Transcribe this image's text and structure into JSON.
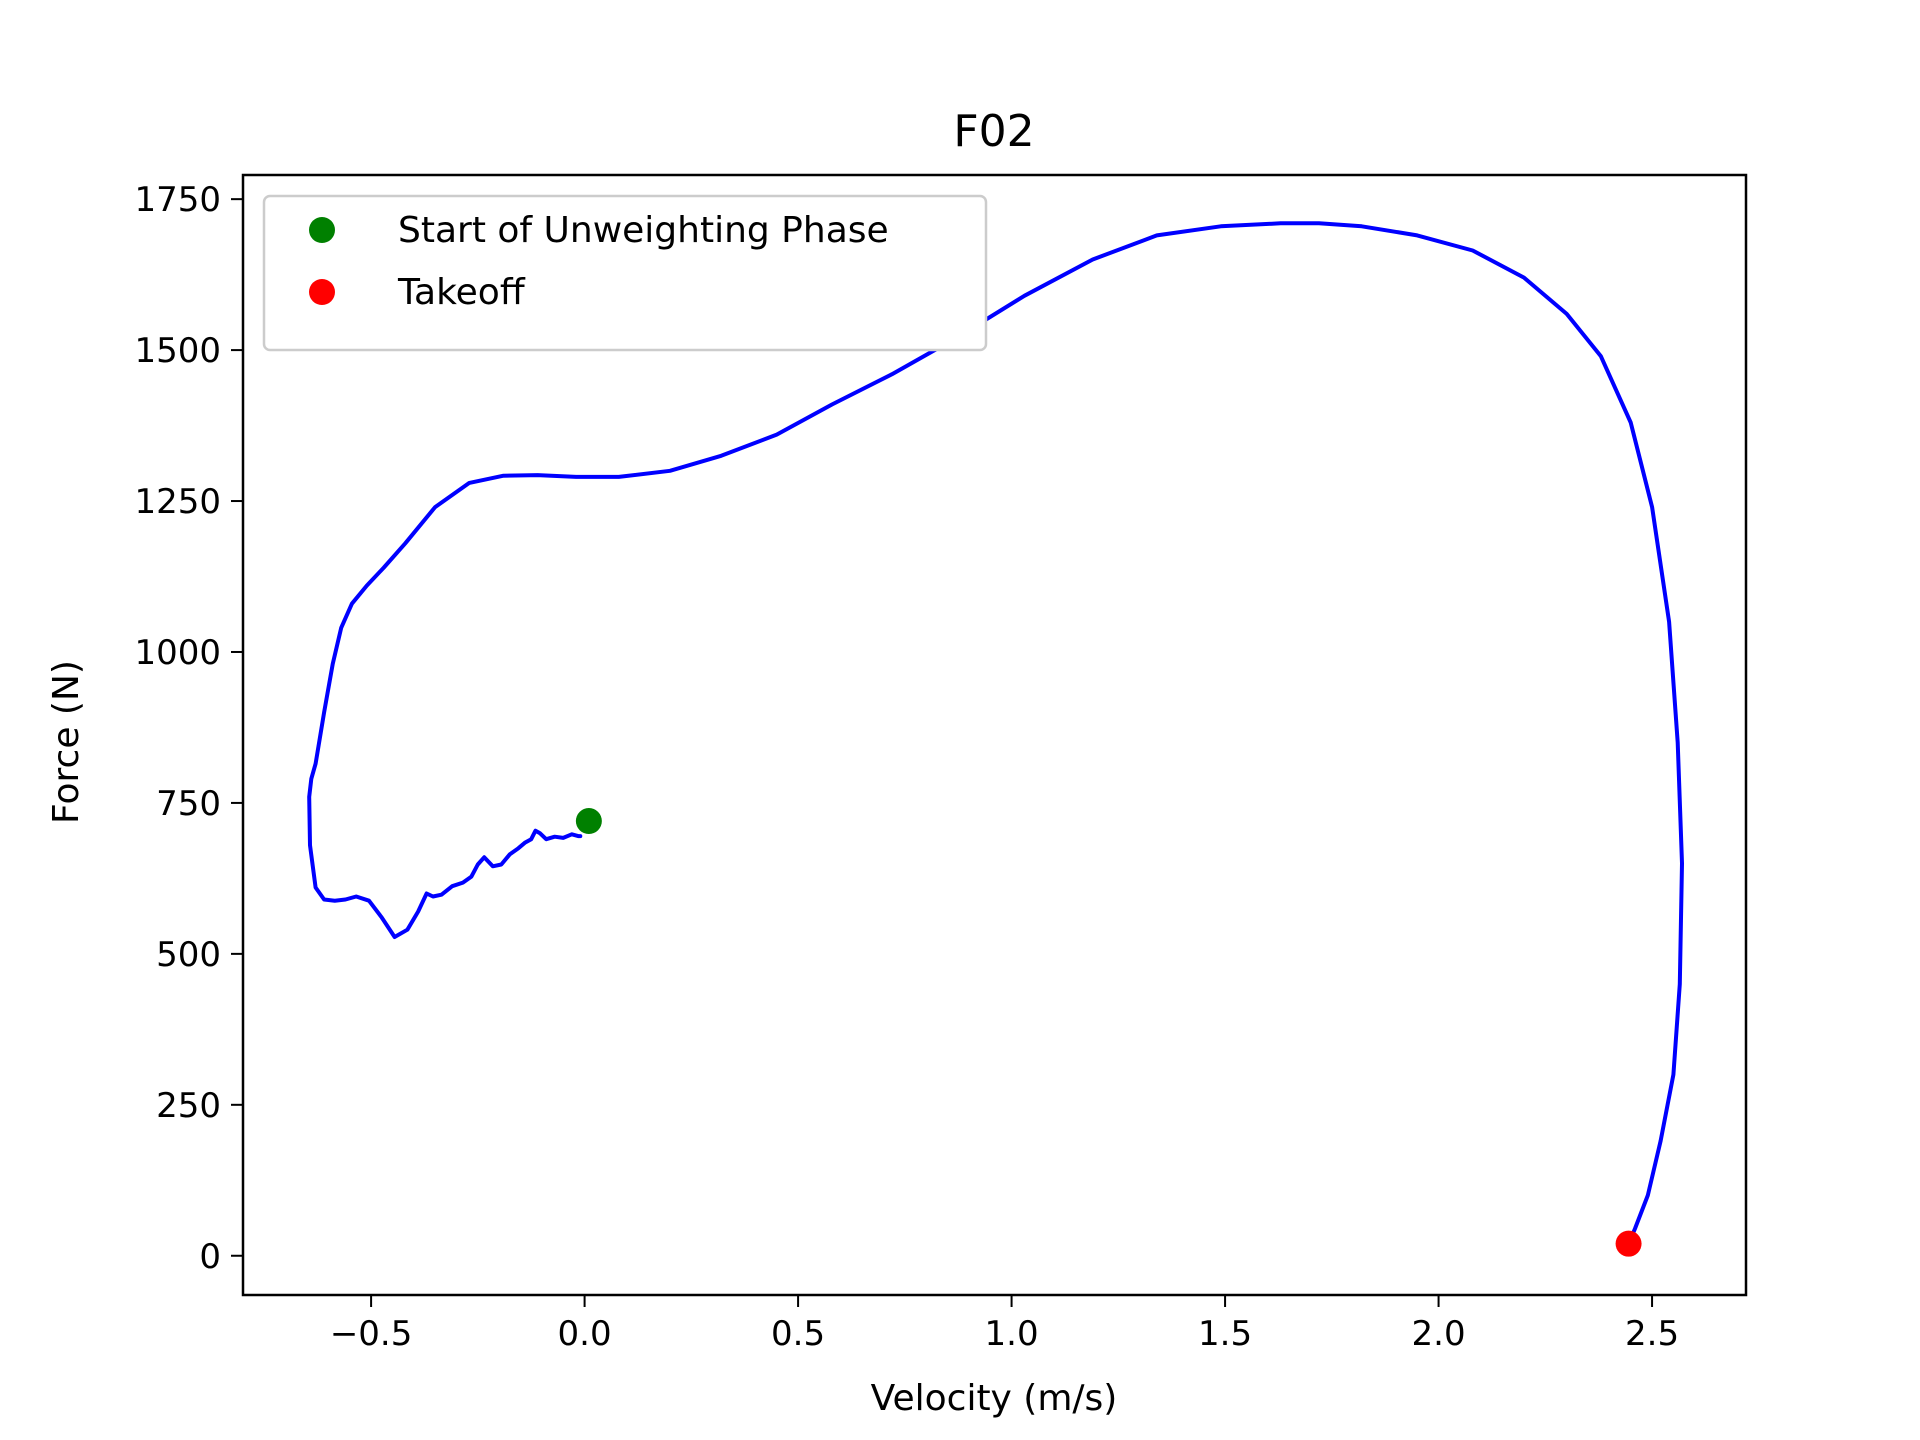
{
  "chart_data": {
    "type": "line",
    "title": "F02",
    "xlabel": "Velocity (m/s)",
    "ylabel": "Force (N)",
    "xlim": [
      -0.8,
      2.72
    ],
    "ylim": [
      -65,
      1790
    ],
    "x_ticks": [
      -0.5,
      0.0,
      0.5,
      1.0,
      1.5,
      2.0,
      2.5
    ],
    "x_tick_labels": [
      "−0.5",
      "0.0",
      "0.5",
      "1.0",
      "1.5",
      "2.0",
      "2.5"
    ],
    "y_ticks": [
      0,
      250,
      500,
      750,
      1000,
      1250,
      1500,
      1750
    ],
    "y_tick_labels": [
      "0",
      "250",
      "500",
      "750",
      "1000",
      "1250",
      "1500",
      "1750"
    ],
    "grid": false,
    "legend_position": "top-left",
    "series": [
      {
        "color": "#0000ff",
        "x": [
          -0.01,
          -0.015,
          -0.03,
          -0.05,
          -0.07,
          -0.09,
          -0.105,
          -0.115,
          -0.125,
          -0.14,
          -0.155,
          -0.175,
          -0.195,
          -0.215,
          -0.235,
          -0.25,
          -0.265,
          -0.285,
          -0.31,
          -0.335,
          -0.355,
          -0.37,
          -0.39,
          -0.415,
          -0.445,
          -0.475,
          -0.505,
          -0.535,
          -0.56,
          -0.585,
          -0.61,
          -0.63,
          -0.643,
          -0.645,
          -0.64,
          -0.63,
          -0.61,
          -0.59,
          -0.57,
          -0.545,
          -0.51,
          -0.47,
          -0.42,
          -0.35,
          -0.27,
          -0.19,
          -0.11,
          -0.02,
          0.08,
          0.2,
          0.32,
          0.45,
          0.58,
          0.72,
          0.87,
          1.03,
          1.19,
          1.34,
          1.49,
          1.63,
          1.72,
          1.82,
          1.95,
          2.08,
          2.2,
          2.3,
          2.38,
          2.45,
          2.5,
          2.54,
          2.56,
          2.57,
          2.565,
          2.55,
          2.52,
          2.49,
          2.46,
          2.445
        ],
        "y": [
          695,
          695,
          698,
          692,
          694,
          690,
          700,
          704,
          690,
          684,
          675,
          665,
          648,
          645,
          660,
          648,
          628,
          618,
          612,
          598,
          595,
          600,
          570,
          540,
          528,
          560,
          588,
          595,
          590,
          588,
          590,
          610,
          680,
          760,
          790,
          815,
          900,
          980,
          1040,
          1080,
          1110,
          1140,
          1180,
          1240,
          1280,
          1292,
          1293,
          1290,
          1290,
          1300,
          1325,
          1360,
          1410,
          1460,
          1520,
          1590,
          1650,
          1690,
          1705,
          1710,
          1710,
          1705,
          1690,
          1665,
          1620,
          1560,
          1490,
          1380,
          1240,
          1050,
          850,
          650,
          450,
          300,
          190,
          100,
          45,
          20
        ]
      },
      {
        "name": "Start of Unweighting Phase",
        "type": "scatter",
        "color": "#008000",
        "x": [
          0.01
        ],
        "y": [
          720
        ]
      },
      {
        "name": "Takeoff",
        "type": "scatter",
        "color": "#ff0000",
        "x": [
          2.445
        ],
        "y": [
          20
        ]
      }
    ]
  }
}
